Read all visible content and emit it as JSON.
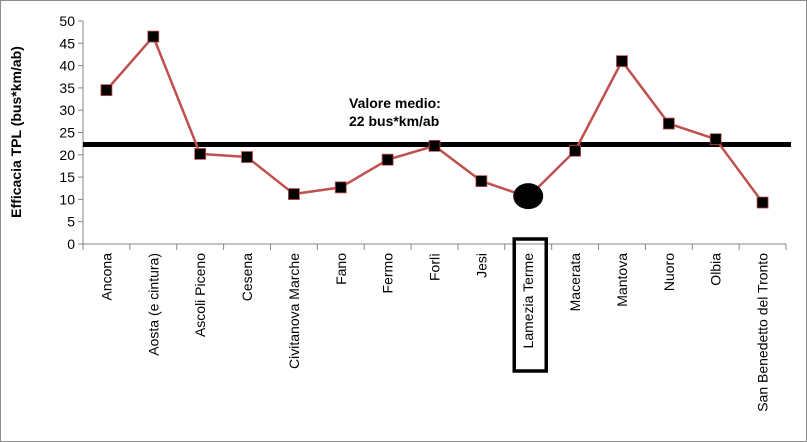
{
  "chart_data": {
    "type": "line",
    "ylabel": "Efficacia TPL (bus*km/ab)",
    "ylim": [
      0,
      50
    ],
    "yticks": [
      0,
      5,
      10,
      15,
      20,
      25,
      30,
      35,
      40,
      45,
      50
    ],
    "grid": false,
    "categories": [
      "Ancona",
      "Aosta (e cintura)",
      "Ascoli Piceno",
      "Cesena",
      "Civitanova Marche",
      "Fano",
      "Fermo",
      "Forlì",
      "Jesi",
      "Lamezia Terme",
      "Macerata",
      "Mantova",
      "Nuoro",
      "Olbia",
      "San Benedetto del Tronto"
    ],
    "values": [
      34.5,
      46.5,
      20.2,
      19.5,
      11.2,
      12.7,
      18.9,
      22.0,
      14.1,
      10.5,
      20.9,
      41.0,
      27.0,
      23.5,
      9.3
    ],
    "highlight_category": "Lamezia Terme",
    "series_color": "#c0504d",
    "marker_color": "#000000",
    "mean_line": {
      "value": 22.3,
      "label_line1": "Valore medio:",
      "label_line2": "22 bus*km/ab",
      "color": "#000000"
    }
  }
}
